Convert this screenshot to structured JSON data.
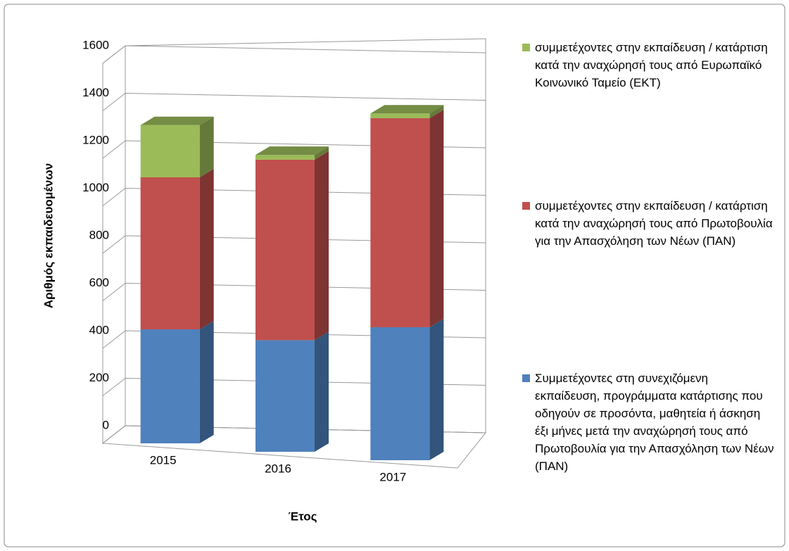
{
  "chart_data": {
    "type": "bar3d_stacked",
    "categories": [
      "2015",
      "2016",
      "2017"
    ],
    "series": [
      {
        "name": "Συμμετέχοντες στη συνεχιζόμενη εκπαίδευση, προγράμματα κατάρτισης που οδηγούν σε προσόντα, μαθητεία ή άσκηση έξι μήνες μετά την αναχώρησή τους από Πρωτοβουλία για την Απασχόληση των Νέων (ΠΑΝ)",
        "color": "#4f81bd",
        "values": [
          480,
          470,
          560
        ]
      },
      {
        "name": "συμμετέχοντες στην εκπαίδευση / κατάρτιση κατά την αναχώρησή τους από Πρωτοβουλία για την Απασχόληση των Νέων (ΠΑΝ)",
        "color": "#c0504d",
        "values": [
          640,
          760,
          880
        ]
      },
      {
        "name": "συμμετέχοντες στην εκπαίδευση / κατάρτιση κατά την αναχώρησή τους από Ευρωπαϊκό Κοινωνικό Ταμείο (ΕΚΤ)",
        "color": "#9bbb59",
        "values": [
          220,
          20,
          20
        ]
      }
    ],
    "ylim": [
      0,
      1600
    ],
    "yticks": [
      0,
      200,
      400,
      600,
      800,
      1000,
      1200,
      1400,
      1600
    ],
    "grid": true,
    "legend": "right",
    "ylabel": "Αριθμός εκπαιδευομένων",
    "xlabel": "Έτος"
  }
}
